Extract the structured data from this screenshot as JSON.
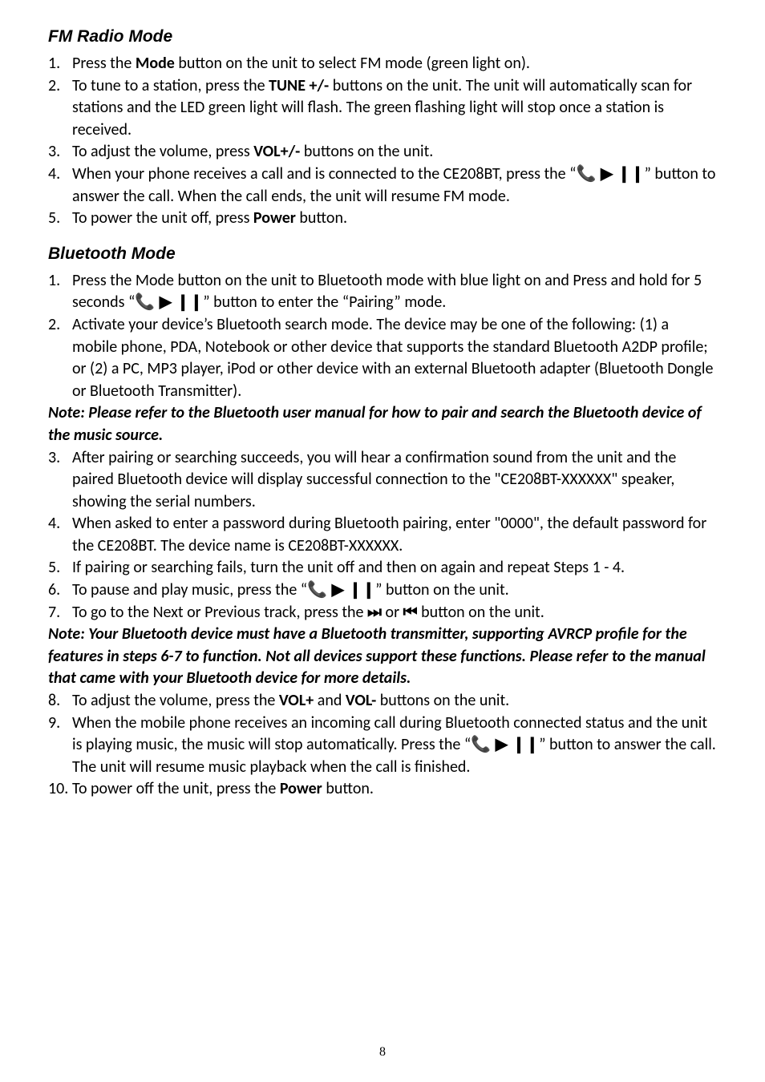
{
  "section1": {
    "title": "FM Radio Mode",
    "items": [
      {
        "n": "1.",
        "html": "Press the <span class=bold>Mode</span> button on the unit to select FM mode (green light on)."
      },
      {
        "n": "2.",
        "html": "To tune to a station, press the <span class=bold>TUNE +/-</span> buttons on the unit. The unit will automatically scan for stations and the LED green light will flash. The green flashing light will stop once a station is received."
      },
      {
        "n": "3.",
        "html": "To adjust the volume, press <span class=bold>VOL+/-</span> buttons on the unit."
      },
      {
        "n": "4.",
        "html": "When your phone receives a call and is connected to the CE208BT, press the &ldquo;<span class=icon>&#128222; &#9654; &#10073;&#10073;</span>&rdquo; button to answer the call. When the call ends, the unit will resume FM mode."
      },
      {
        "n": "5.",
        "html": "To power the unit off, press <span class=bold>Power</span> button."
      }
    ]
  },
  "section2": {
    "title": "Bluetooth Mode",
    "items_a": [
      {
        "n": "1.",
        "html": "Press the Mode button on the unit to Bluetooth mode with blue light on and Press and hold for 5 seconds &ldquo;<span class=icon>&#128222; &#9654; &#10073;&#10073;</span>&rdquo; button to enter the &ldquo;Pairing&rdquo; mode."
      },
      {
        "n": "2.",
        "html": "Activate your device&rsquo;s Bluetooth search mode. The device may be one of the following: (1) a mobile phone, PDA, Notebook or other device that supports the standard Bluetooth A2DP profile; or (2) a PC, MP3 player, iPod or other device with an external Bluetooth adapter (Bluetooth Dongle or Bluetooth Transmitter)."
      }
    ],
    "note_a": "Note: Please refer to the Bluetooth user manual for how to pair and search the Bluetooth device of the music source.",
    "items_b": [
      {
        "n": "3.",
        "html": "After pairing or searching succeeds, you will hear a confirmation sound from the unit and the paired Bluetooth device will display successful connection to the \"CE208BT-XXXXXX\" speaker, showing the serial numbers."
      },
      {
        "n": "4.",
        "html": "When asked to enter a password during Bluetooth pairing, enter \"0000\", the default password for the CE208BT. The device name is CE208BT-XXXXXX."
      },
      {
        "n": "5.",
        "html": "If pairing or searching fails, turn the unit off and then on again and repeat Steps 1 - 4."
      },
      {
        "n": "6.",
        "html": "To pause and play music, press the &ldquo;<span class=icon>&#128222; &#9654; &#10073;&#10073;</span>&rdquo; button on the unit."
      },
      {
        "n": "7.",
        "html": "To go to the Next or Previous track, press the <span class=icon>&#9197;&#65038;</span> or <span class=icon>&#9198;&#65038;</span> button on the unit."
      }
    ],
    "note_b": "Note: Your Bluetooth device must have a Bluetooth transmitter, supporting AVRCP profile for the features in steps 6-7 to function. Not all devices support these functions. Please refer to the manual that came with your Bluetooth device for more details.",
    "items_c": [
      {
        "n": "8.",
        "html": "To adjust the volume, press the <span class=bold>VOL+</span> and <span class=bold>VOL-</span> buttons on the unit."
      },
      {
        "n": "9.",
        "html": "When the mobile phone receives an incoming call during Bluetooth connected status and the unit is playing music, the music will stop automatically. Press the &ldquo;<span class=icon>&#128222; &#9654; &#10073;&#10073;</span>&rdquo; button to answer the call. The unit will resume music playback when the call is finished."
      },
      {
        "n": "10.",
        "html": "To power off the unit, press the <span class=bold>Power</span> button."
      }
    ]
  },
  "pageNumber": "8"
}
